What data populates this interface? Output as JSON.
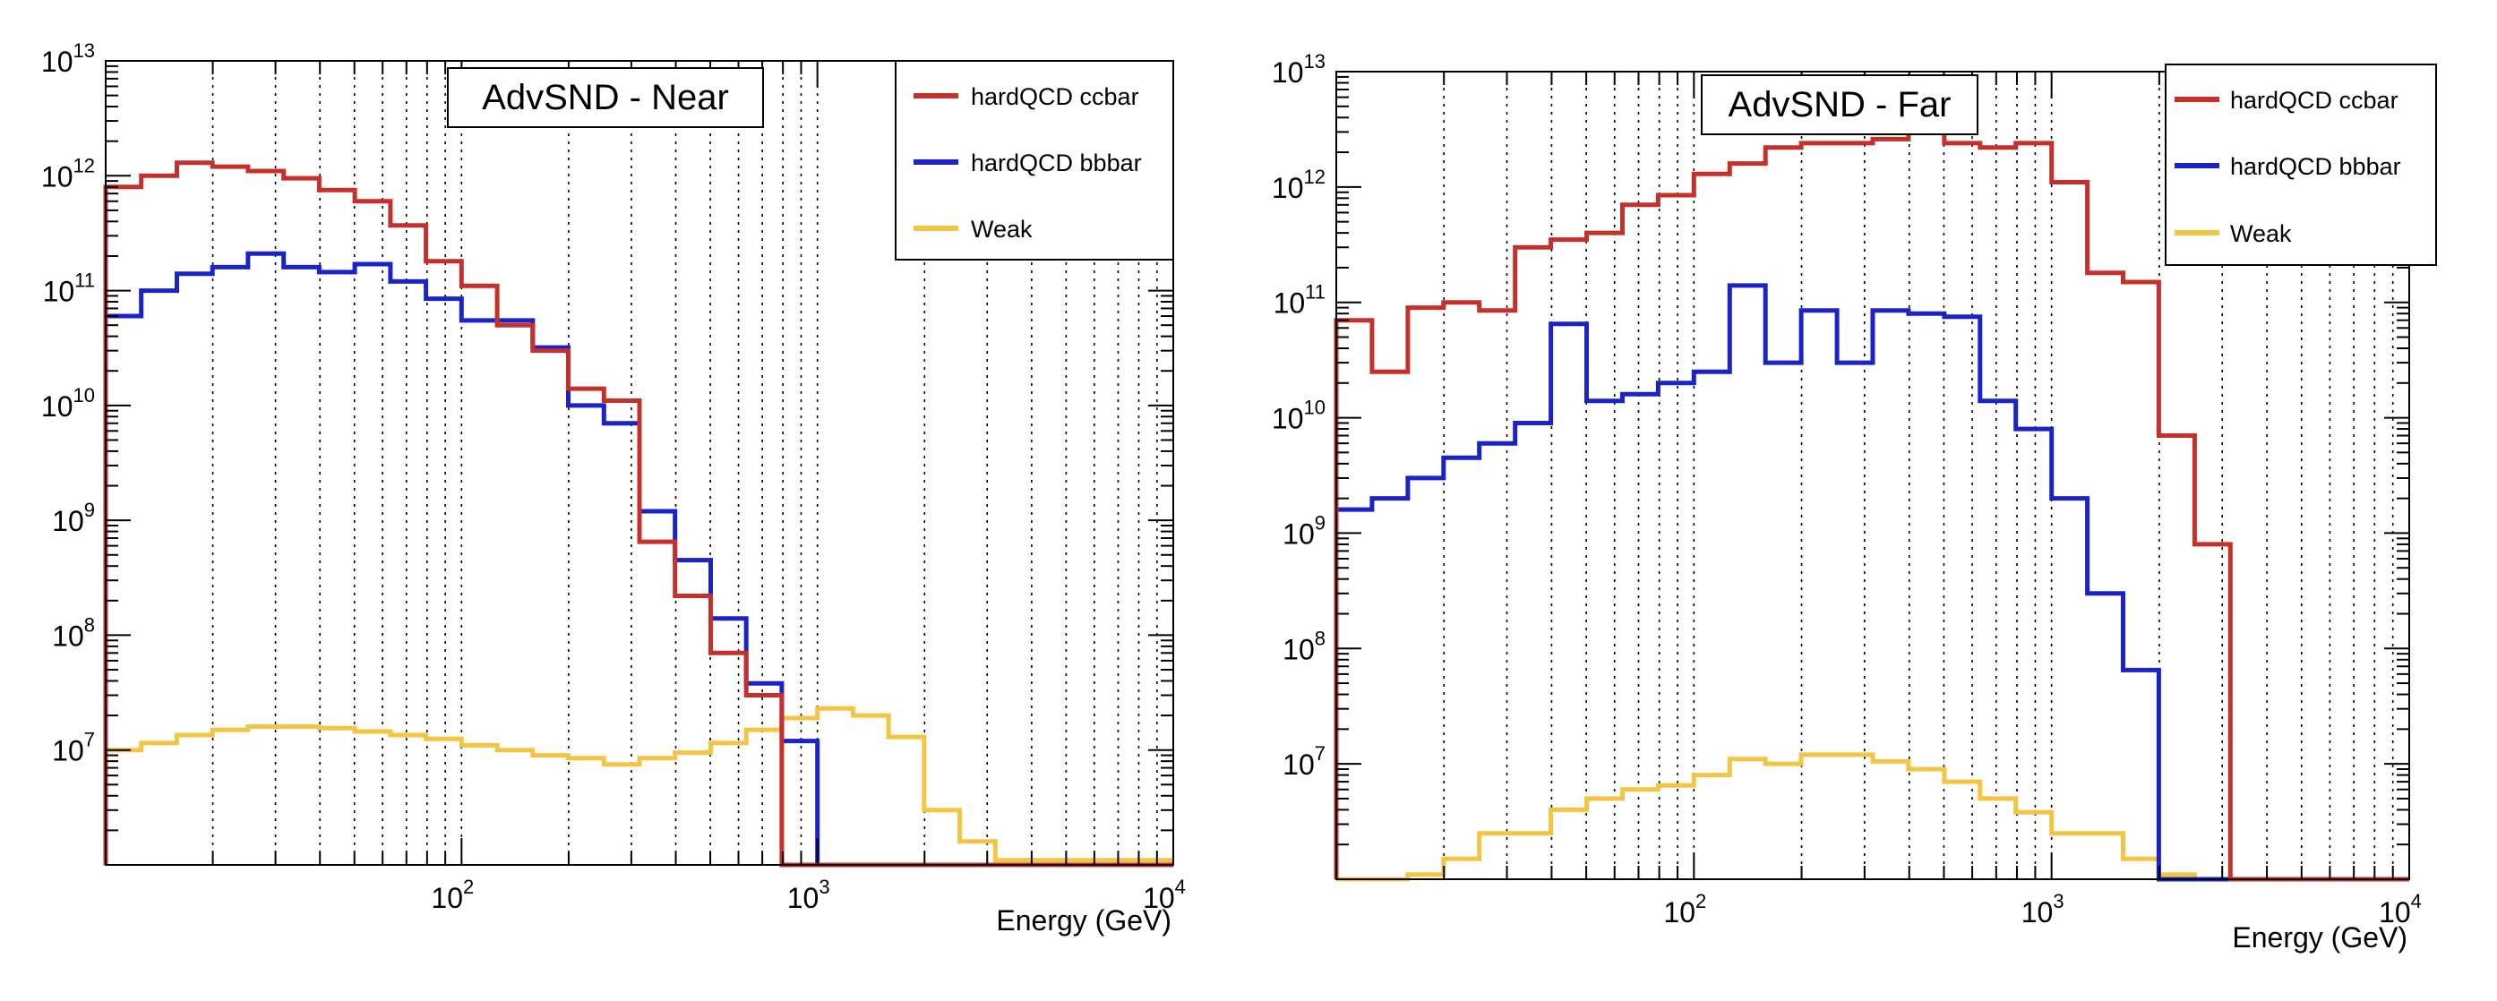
{
  "colors": {
    "ccbar": "#c6302a",
    "bbbar": "#1a23c8",
    "weak": "#f4c542"
  },
  "chart_data": [
    {
      "type": "line",
      "title": "AdvSND - Near",
      "xlabel": "Energy (GeV)",
      "ylabel": "",
      "xscale": "log",
      "yscale": "log",
      "xlim": [
        10,
        10000
      ],
      "ylim": [
        1000000,
        10000000000000
      ],
      "grid": "vertical-dotted",
      "legend": "top-right",
      "x_ticks": [
        {
          "base": "10",
          "exp": "2",
          "value": 100
        },
        {
          "base": "10",
          "exp": "3",
          "value": 1000
        },
        {
          "base": "10",
          "exp": "4",
          "value": 10000
        }
      ],
      "y_ticks": [
        {
          "base": "10",
          "exp": "7",
          "value": 10000000
        },
        {
          "base": "10",
          "exp": "8",
          "value": 100000000
        },
        {
          "base": "10",
          "exp": "9",
          "value": 1000000000
        },
        {
          "base": "10",
          "exp": "10",
          "value": 10000000000
        },
        {
          "base": "10",
          "exp": "11",
          "value": 100000000000
        },
        {
          "base": "10",
          "exp": "12",
          "value": 1000000000000
        },
        {
          "base": "10",
          "exp": "13",
          "value": 10000000000000
        }
      ],
      "bin_edges": [
        10,
        12.59,
        15.85,
        19.95,
        25.12,
        31.62,
        39.81,
        50.12,
        63.1,
        79.43,
        100,
        125.9,
        158.5,
        199.5,
        251.2,
        316.2,
        398.1,
        501.2,
        631,
        794.3,
        1000,
        1259,
        1585,
        1995,
        2512,
        3162,
        3981,
        5012,
        6310,
        7943,
        10000
      ],
      "series": [
        {
          "name": "hardQCD ccbar",
          "color_key": "ccbar",
          "values": [
            800000000000.0,
            1000000000000.0,
            1300000000000.0,
            1200000000000.0,
            1100000000000.0,
            950000000000.0,
            750000000000.0,
            600000000000.0,
            370000000000.0,
            180000000000.0,
            110000000000.0,
            50000000000.0,
            30000000000.0,
            14000000000.0,
            11000000000.0,
            650000000.0,
            220000000.0,
            70000000.0,
            30000000.0,
            1000000.0,
            1000000.0,
            1000000.0,
            1000000.0,
            1000000.0,
            1000000.0,
            1000000.0,
            1000000.0,
            1000000.0,
            1000000.0,
            1000000.0
          ]
        },
        {
          "name": "hardQCD bbbar",
          "color_key": "bbbar",
          "values": [
            60000000000.0,
            100000000000.0,
            140000000000.0,
            160000000000.0,
            210000000000.0,
            160000000000.0,
            145000000000.0,
            170000000000.0,
            120000000000.0,
            85000000000.0,
            55000000000.0,
            55000000000.0,
            32000000000.0,
            10000000000.0,
            7000000000.0,
            1200000000.0,
            450000000.0,
            140000000.0,
            38000000.0,
            12000000.0,
            1000000.0,
            1000000.0,
            1000000.0,
            1000000.0,
            1000000.0,
            1000000.0,
            1000000.0,
            1000000.0,
            1000000.0,
            1000000.0
          ]
        },
        {
          "name": "Weak",
          "color_key": "weak",
          "values": [
            10000000.0,
            11500000.0,
            13500000.0,
            15000000.0,
            16000000.0,
            16000000.0,
            15500000.0,
            14500000.0,
            13500000.0,
            12500000.0,
            11000000.0,
            10000000.0,
            9000000.0,
            8500000.0,
            7500000.0,
            8500000.0,
            9500000.0,
            11500000.0,
            15000000.0,
            19000000.0,
            23000000.0,
            20000000.0,
            13000000.0,
            3000000.0,
            1600000.0,
            1100000.0,
            1100000.0,
            1100000.0,
            1100000.0,
            1100000.0
          ]
        }
      ]
    },
    {
      "type": "line",
      "title": "AdvSND - Far",
      "xlabel": "Energy (GeV)",
      "ylabel": "",
      "xscale": "log",
      "yscale": "log",
      "xlim": [
        10,
        10000
      ],
      "ylim": [
        1000000,
        10000000000000
      ],
      "grid": "vertical-dotted",
      "legend": "top-right",
      "x_ticks": [
        {
          "base": "10",
          "exp": "2",
          "value": 100
        },
        {
          "base": "10",
          "exp": "3",
          "value": 1000
        },
        {
          "base": "10",
          "exp": "4",
          "value": 10000
        }
      ],
      "y_ticks": [
        {
          "base": "10",
          "exp": "7",
          "value": 10000000
        },
        {
          "base": "10",
          "exp": "8",
          "value": 100000000
        },
        {
          "base": "10",
          "exp": "9",
          "value": 1000000000
        },
        {
          "base": "10",
          "exp": "10",
          "value": 10000000000
        },
        {
          "base": "10",
          "exp": "11",
          "value": 100000000000
        },
        {
          "base": "10",
          "exp": "12",
          "value": 1000000000000
        },
        {
          "base": "10",
          "exp": "13",
          "value": 10000000000000
        }
      ],
      "bin_edges": [
        10,
        12.59,
        15.85,
        19.95,
        25.12,
        31.62,
        39.81,
        50.12,
        63.1,
        79.43,
        100,
        125.9,
        158.5,
        199.5,
        251.2,
        316.2,
        398.1,
        501.2,
        631,
        794.3,
        1000,
        1259,
        1585,
        1995,
        2512,
        3162,
        3981,
        5012,
        6310,
        7943,
        10000
      ],
      "series": [
        {
          "name": "hardQCD ccbar",
          "color_key": "ccbar",
          "values": [
            70000000000.0,
            25000000000.0,
            90000000000.0,
            100000000000.0,
            85000000000.0,
            300000000000.0,
            350000000000.0,
            400000000000.0,
            700000000000.0,
            850000000000.0,
            1300000000000.0,
            1600000000000.0,
            2200000000000.0,
            2400000000000.0,
            2400000000000.0,
            2600000000000.0,
            3000000000000.0,
            2400000000000.0,
            2200000000000.0,
            2400000000000.0,
            1100000000000.0,
            180000000000.0,
            150000000000.0,
            7000000000.0,
            800000000.0,
            1000000.0,
            1000000.0,
            1000000.0,
            1000000.0,
            1000000.0
          ]
        },
        {
          "name": "hardQCD bbbar",
          "color_key": "bbbar",
          "values": [
            1600000000.0,
            2000000000.0,
            3000000000.0,
            4500000000.0,
            6000000000.0,
            9000000000.0,
            65000000000.0,
            14000000000.0,
            16000000000.0,
            20000000000.0,
            25000000000.0,
            140000000000.0,
            30000000000.0,
            85000000000.0,
            30000000000.0,
            85000000000.0,
            80000000000.0,
            75000000000.0,
            14000000000.0,
            8000000000.0,
            2000000000.0,
            300000000.0,
            65000000.0,
            1000000.0,
            1000000.0,
            1000000.0,
            1000000.0,
            1000000.0,
            1000000.0,
            1000000.0
          ]
        },
        {
          "name": "Weak",
          "color_key": "weak",
          "values": [
            1000000.0,
            1000000.0,
            1100000.0,
            1500000.0,
            2500000.0,
            2500000.0,
            4000000.0,
            5000000.0,
            6000000.0,
            6500000.0,
            8000000.0,
            11000000.0,
            10000000.0,
            12000000.0,
            12000000.0,
            10500000.0,
            9000000.0,
            7000000.0,
            5000000.0,
            3800000.0,
            2500000.0,
            2500000.0,
            1500000.0,
            1100000.0,
            1000000.0,
            1000000.0,
            1000000.0,
            1000000.0,
            1000000.0,
            1000000.0
          ]
        }
      ]
    }
  ]
}
